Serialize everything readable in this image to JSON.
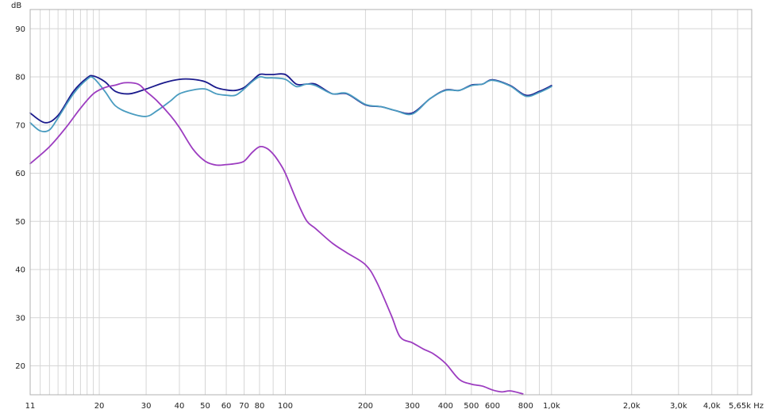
{
  "chart_data": {
    "type": "line",
    "title": "",
    "xscale": "log",
    "xlim": [
      11,
      5650
    ],
    "ylim": [
      14,
      94
    ],
    "ylabel": "dB",
    "xlabel": "Hz",
    "grid": true,
    "y_ticks": [
      {
        "value": 20,
        "label": "20"
      },
      {
        "value": 30,
        "label": "30"
      },
      {
        "value": 40,
        "label": "40"
      },
      {
        "value": 50,
        "label": "50"
      },
      {
        "value": 60,
        "label": "60"
      },
      {
        "value": 70,
        "label": "70"
      },
      {
        "value": 80,
        "label": "80"
      },
      {
        "value": 90,
        "label": "90"
      }
    ],
    "x_ticks": [
      {
        "value": 11,
        "label": "11"
      },
      {
        "value": 20,
        "label": "20"
      },
      {
        "value": 30,
        "label": "30"
      },
      {
        "value": 40,
        "label": "40"
      },
      {
        "value": 50,
        "label": "50"
      },
      {
        "value": 60,
        "label": "60"
      },
      {
        "value": 70,
        "label": "70"
      },
      {
        "value": 80,
        "label": "80"
      },
      {
        "value": 100,
        "label": "100"
      },
      {
        "value": 200,
        "label": "200"
      },
      {
        "value": 300,
        "label": "300"
      },
      {
        "value": 400,
        "label": "400"
      },
      {
        "value": 500,
        "label": "500"
      },
      {
        "value": 600,
        "label": "600"
      },
      {
        "value": 800,
        "label": "800"
      },
      {
        "value": 1000,
        "label": "1,0k"
      },
      {
        "value": 2000,
        "label": "2,0k"
      },
      {
        "value": 3000,
        "label": "3,0k"
      },
      {
        "value": 4000,
        "label": "4,0k"
      },
      {
        "value": 5650,
        "label": "5,65k Hz"
      }
    ],
    "series": [
      {
        "color": "#1a1a8c",
        "x": [
          11,
          12.5,
          14,
          16,
          18,
          19,
          21,
          23,
          26,
          30,
          35,
          40,
          45,
          50,
          55,
          60,
          65,
          70,
          75,
          80,
          85,
          90,
          100,
          110,
          120,
          130,
          150,
          170,
          200,
          230,
          260,
          300,
          350,
          400,
          450,
          500,
          550,
          600,
          700,
          800,
          900,
          1000
        ],
        "y": [
          72.5,
          70.5,
          72,
          77,
          79.8,
          80.2,
          79,
          77,
          76.5,
          77.5,
          78.8,
          79.5,
          79.5,
          79,
          77.8,
          77.3,
          77.2,
          77.8,
          79.2,
          80.5,
          80.5,
          80.5,
          80.5,
          78.5,
          78.5,
          78.5,
          76.5,
          76.5,
          74.2,
          73.8,
          73,
          72.5,
          75.5,
          77.3,
          77.2,
          78.3,
          78.5,
          79.4,
          78.2,
          76.2,
          77,
          78.2
        ]
      },
      {
        "color": "#4a9cc0",
        "x": [
          11,
          12,
          13,
          14,
          16,
          18,
          19,
          21,
          23,
          26,
          30,
          33,
          37,
          40,
          45,
          50,
          55,
          60,
          65,
          70,
          75,
          80,
          85,
          90,
          100,
          110,
          120,
          130,
          150,
          170,
          200,
          230,
          260,
          300,
          350,
          400,
          450,
          500,
          550,
          600,
          700,
          800,
          900,
          1000
        ],
        "y": [
          70.5,
          68.8,
          69,
          71.5,
          76.5,
          79.5,
          79.8,
          77,
          74,
          72.5,
          71.8,
          73,
          75,
          76.5,
          77.3,
          77.5,
          76.5,
          76.2,
          76.2,
          77.5,
          79,
          80,
          79.8,
          79.8,
          79.5,
          78,
          78.5,
          78.2,
          76.5,
          76.6,
          74.3,
          73.8,
          73,
          72.3,
          75.5,
          77.2,
          77.2,
          78.2,
          78.5,
          79.3,
          78.1,
          76,
          76.8,
          78
        ]
      },
      {
        "color": "#9c3cc0",
        "x": [
          11,
          13,
          15,
          17,
          19,
          21,
          23,
          25,
          28,
          30,
          33,
          37,
          40,
          45,
          50,
          55,
          60,
          65,
          70,
          75,
          80,
          85,
          90,
          95,
          100,
          110,
          120,
          130,
          150,
          170,
          200,
          220,
          250,
          270,
          300,
          330,
          360,
          400,
          450,
          500,
          550,
          600,
          650,
          700,
          780
        ],
        "y": [
          62,
          65.5,
          69.5,
          73.5,
          76.5,
          77.8,
          78.3,
          78.8,
          78.5,
          77,
          75,
          72,
          69.5,
          65,
          62.5,
          61.7,
          61.8,
          62,
          62.5,
          64.3,
          65.5,
          65.2,
          64,
          62.2,
          60,
          54.5,
          50.2,
          48.5,
          45.5,
          43.5,
          41,
          37.5,
          30.5,
          26,
          24.8,
          23.5,
          22.5,
          20.5,
          17.2,
          16.2,
          15.8,
          15,
          14.6,
          14.8,
          14.2
        ]
      }
    ]
  }
}
